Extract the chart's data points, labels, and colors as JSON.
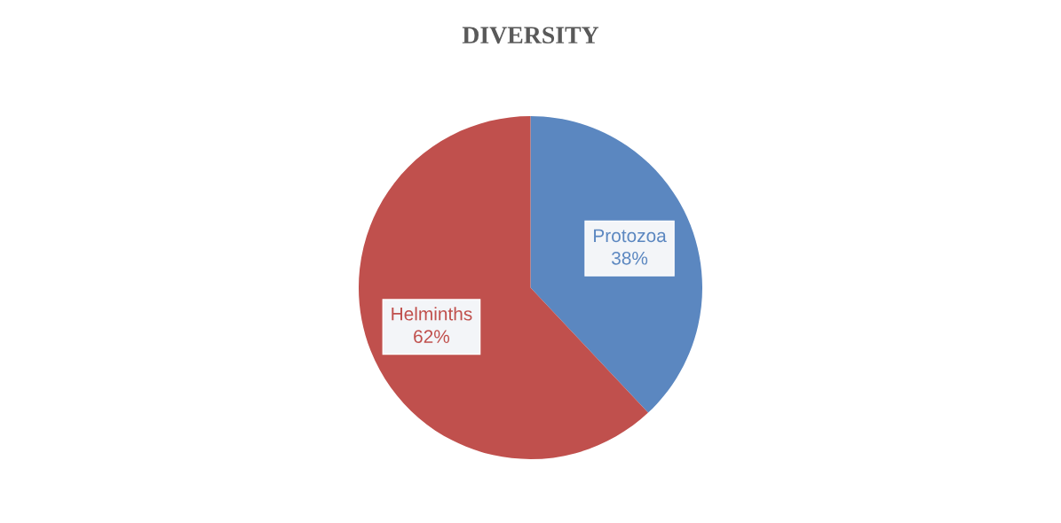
{
  "chart_data": {
    "type": "pie",
    "title": "DIVERSITY",
    "categories": [
      "Protozoa",
      "Helminths"
    ],
    "values": [
      38,
      62
    ],
    "value_labels": [
      "38%",
      "62%"
    ],
    "colors": [
      "#5b87c0",
      "#c0504d"
    ],
    "legend": false
  }
}
